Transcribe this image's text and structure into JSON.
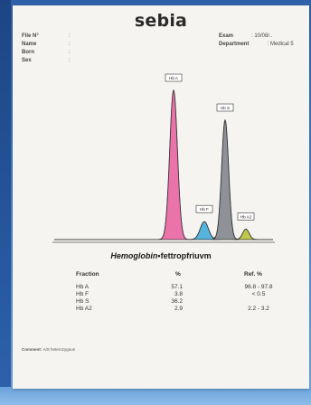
{
  "brand": "sebia",
  "patient": {
    "fields": [
      {
        "label": "File N°",
        "value": ""
      },
      {
        "label": "Name",
        "value": ""
      },
      {
        "label": "Born",
        "value": ""
      },
      {
        "label": "Sex",
        "value": ""
      }
    ],
    "exam_label": "Exam",
    "exam_value": ": 10/08/..",
    "department_label": "Department",
    "department_value": ": Medical 5"
  },
  "chart_data": {
    "type": "line",
    "title": "Hemoglobin",
    "subtitle": "•fettropfriuvm",
    "peaks": [
      {
        "name": "Hb A",
        "label": "Hb A",
        "relative_height": 1.0,
        "color": "#e85c9e"
      },
      {
        "name": "Hb F",
        "label": "Hb F",
        "relative_height": 0.12,
        "color": "#3aa7d8"
      },
      {
        "name": "Hb S",
        "label": "Hb S",
        "relative_height": 0.8,
        "color": "#7b7f87"
      },
      {
        "name": "Hb A2",
        "label": "Hb A2",
        "relative_height": 0.07,
        "color": "#b5c02a"
      }
    ]
  },
  "results": {
    "headers": {
      "fraction": "Fraction",
      "percent": "%",
      "ref": "Ref. %"
    },
    "rows": [
      {
        "fraction": "Hb A",
        "percent": "57.1",
        "ref": "96.8 - 97.8"
      },
      {
        "fraction": "Hb F",
        "percent": "3.8",
        "ref": "< 0.5"
      },
      {
        "fraction": "Hb S",
        "percent": "36.2",
        "ref": ""
      },
      {
        "fraction": "Hb A2",
        "percent": "2.9",
        "ref": "2.2 - 3.2"
      }
    ]
  },
  "comment": {
    "label": "Comment:",
    "value": "A/S heterozygous"
  }
}
